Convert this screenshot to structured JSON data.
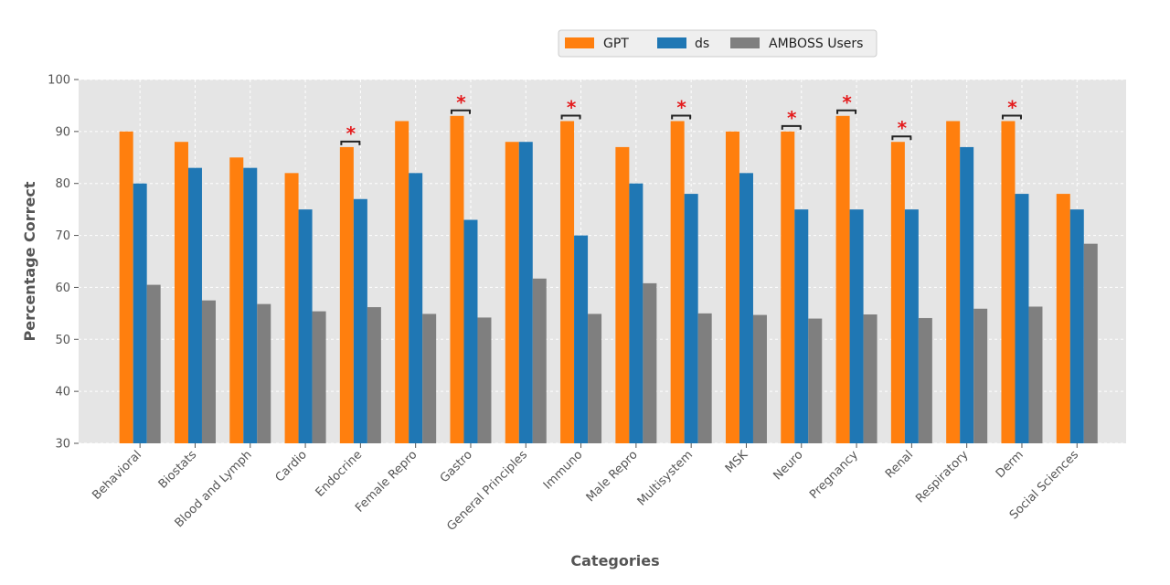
{
  "chart_data": {
    "type": "bar",
    "xlabel": "Categories",
    "ylabel": "Percentage Correct",
    "ylim": [
      30,
      100
    ],
    "yticks": [
      30,
      40,
      50,
      60,
      70,
      80,
      90,
      100
    ],
    "grid": true,
    "legend_position": "top-center",
    "categories": [
      "Behavioral",
      "Biostats",
      "Blood and Lymph",
      "Cardio",
      "Endocrine",
      "Female Repro",
      "Gastro",
      "General Principles",
      "Immuno",
      "Male Repro",
      "Multisystem",
      "MSK",
      "Neuro",
      "Pregnancy",
      "Renal",
      "Respiratory",
      "Derm",
      "Social Sciences"
    ],
    "series": [
      {
        "name": "GPT",
        "color": "#ff7f0e",
        "values": [
          90,
          88,
          85,
          82,
          87,
          92,
          93,
          88,
          92,
          87,
          92,
          90,
          90,
          93,
          88,
          92,
          92,
          78
        ]
      },
      {
        "name": "ds",
        "color": "#1f77b4",
        "values": [
          80,
          83,
          83,
          75,
          77,
          82,
          73,
          88,
          70,
          80,
          78,
          82,
          75,
          75,
          75,
          87,
          78,
          75
        ]
      },
      {
        "name": "AMBOSS Users",
        "color": "#7f7f7f",
        "values": [
          60.5,
          57.5,
          56.8,
          55.4,
          56.2,
          54.9,
          54.2,
          61.7,
          54.9,
          60.8,
          55,
          54.7,
          54,
          54.8,
          54.1,
          55.9,
          56.3,
          68.4
        ]
      }
    ],
    "significance_marker": "*",
    "significant_categories": [
      "Endocrine",
      "Gastro",
      "Immuno",
      "Multisystem",
      "Neuro",
      "Pregnancy",
      "Renal",
      "Derm"
    ],
    "significance_color": "#e41a1c",
    "plot_background": "#e5e5e5"
  }
}
